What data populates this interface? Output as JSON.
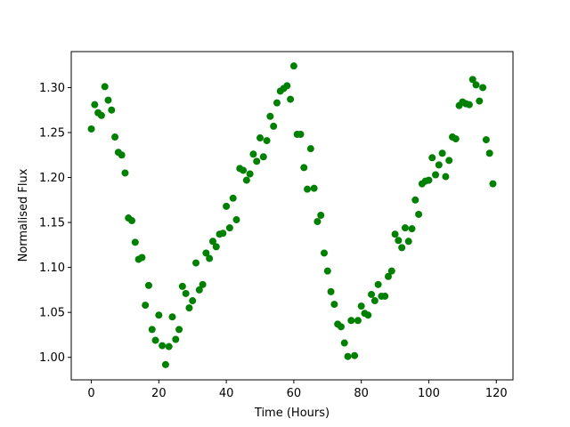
{
  "chart_data": {
    "type": "scatter",
    "xlabel": "Time (Hours)",
    "ylabel": "Normalised Flux",
    "color": "#008000",
    "xlim": [
      -5.95,
      124.95
    ],
    "xticks": [
      0,
      20,
      40,
      60,
      80,
      100,
      120
    ],
    "ylim": [
      0.975,
      1.34
    ],
    "yticks": [
      {
        "value": 1.0,
        "label": "1.00"
      },
      1.05,
      {
        "value": 1.1,
        "label": "1.10"
      },
      1.15,
      {
        "value": 1.2,
        "label": "1.20"
      },
      1.25,
      {
        "value": 1.3,
        "label": "1.30"
      }
    ],
    "x": [
      0,
      1,
      2,
      3,
      4,
      5,
      6,
      7,
      8,
      9,
      10,
      11,
      12,
      13,
      14,
      15,
      16,
      17,
      18,
      19,
      20,
      21,
      22,
      23,
      24,
      25,
      26,
      27,
      28,
      29,
      30,
      31,
      32,
      33,
      34,
      35,
      36,
      37,
      38,
      39,
      40,
      41,
      42,
      43,
      44,
      45,
      46,
      47,
      48,
      49,
      50,
      51,
      52,
      53,
      54,
      55,
      56,
      57,
      58,
      59,
      60,
      61,
      62,
      63,
      64,
      65,
      66,
      67,
      68,
      69,
      70,
      71,
      72,
      73,
      74,
      75,
      76,
      77,
      78,
      79,
      80,
      81,
      82,
      83,
      84,
      85,
      86,
      87,
      88,
      89,
      90,
      91,
      92,
      93,
      94,
      95,
      96,
      97,
      98,
      99,
      100,
      101,
      102,
      103,
      104,
      105,
      106,
      107,
      108,
      109,
      110,
      111,
      112,
      113,
      114,
      115,
      116,
      117,
      118,
      119
    ],
    "values": [
      1.254,
      1.281,
      1.272,
      1.269,
      1.301,
      1.286,
      1.275,
      1.245,
      1.228,
      1.225,
      1.205,
      1.155,
      1.152,
      1.128,
      1.109,
      1.111,
      1.058,
      1.08,
      1.031,
      1.019,
      1.047,
      1.013,
      0.992,
      1.012,
      1.045,
      1.02,
      1.031,
      1.079,
      1.071,
      1.055,
      1.063,
      1.105,
      1.075,
      1.081,
      1.116,
      1.11,
      1.129,
      1.123,
      1.137,
      1.138,
      1.168,
      1.144,
      1.177,
      1.153,
      1.21,
      1.208,
      1.197,
      1.204,
      1.226,
      1.218,
      1.244,
      1.223,
      1.241,
      1.268,
      1.257,
      1.283,
      1.296,
      1.299,
      1.302,
      1.287,
      1.324,
      1.248,
      1.248,
      1.211,
      1.187,
      1.232,
      1.188,
      1.151,
      1.158,
      1.116,
      1.096,
      1.073,
      1.059,
      1.037,
      1.034,
      1.016,
      1.001,
      1.041,
      1.002,
      1.041,
      1.057,
      1.049,
      1.047,
      1.07,
      1.063,
      1.081,
      1.068,
      1.068,
      1.09,
      1.096,
      1.137,
      1.13,
      1.122,
      1.144,
      1.129,
      1.143,
      1.175,
      1.159,
      1.193,
      1.196,
      1.197,
      1.222,
      1.203,
      1.214,
      1.227,
      1.201,
      1.219,
      1.245,
      1.243,
      1.28,
      1.284,
      1.282,
      1.281,
      1.309,
      1.303,
      1.285,
      1.3,
      1.242,
      1.227,
      1.193
    ]
  }
}
